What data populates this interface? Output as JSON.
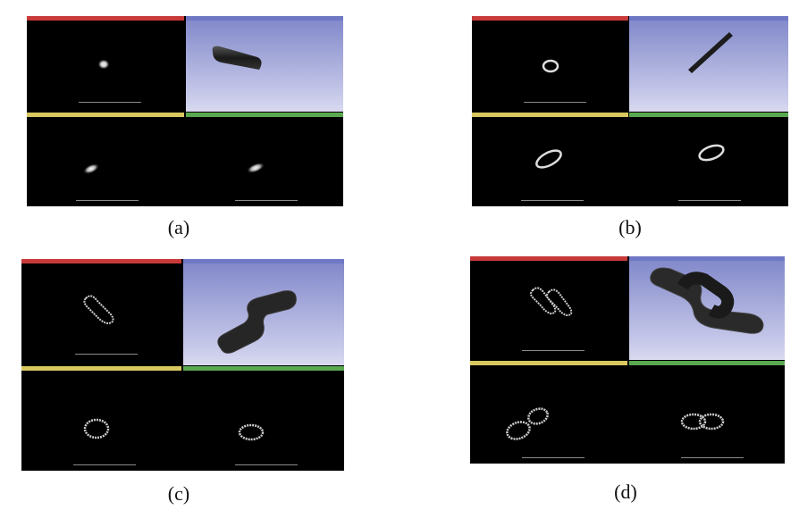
{
  "panels": [
    {
      "id": "a",
      "caption": "(a)"
    },
    {
      "id": "b",
      "caption": "(b)"
    },
    {
      "id": "c",
      "caption": "(c)"
    },
    {
      "id": "d",
      "caption": "(d)"
    }
  ],
  "colors": {
    "red_view": "#c83a3a",
    "yellow_view": "#d8c860",
    "green_view": "#5aa850",
    "threed_view": "#7f86c9"
  }
}
